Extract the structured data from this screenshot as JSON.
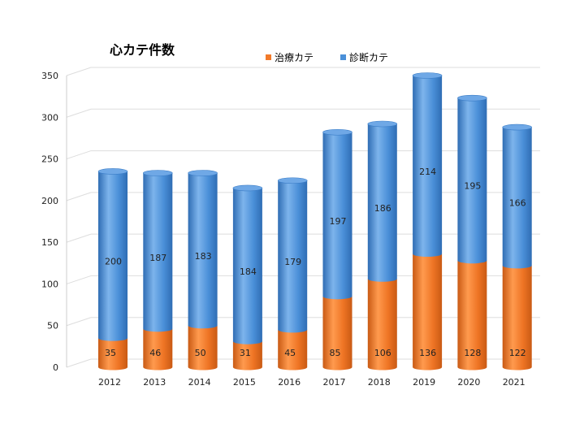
{
  "chart_data": {
    "type": "bar",
    "stacked": true,
    "style": "3d-cylinder",
    "title": "心カテ件数",
    "categories": [
      "2012",
      "2013",
      "2014",
      "2015",
      "2016",
      "2017",
      "2018",
      "2019",
      "2020",
      "2021"
    ],
    "series": [
      {
        "name": "治療カテ",
        "color": "#F27A2A",
        "values": [
          35,
          46,
          50,
          31,
          45,
          85,
          106,
          136,
          128,
          122
        ]
      },
      {
        "name": "診断カテ",
        "color": "#4A90D9",
        "values": [
          200,
          187,
          183,
          184,
          179,
          197,
          186,
          214,
          195,
          166
        ]
      }
    ],
    "ylim": [
      0,
      350
    ],
    "yticks": [
      0,
      50,
      100,
      150,
      200,
      250,
      300,
      350
    ],
    "grid": true,
    "legend_position": "top"
  }
}
